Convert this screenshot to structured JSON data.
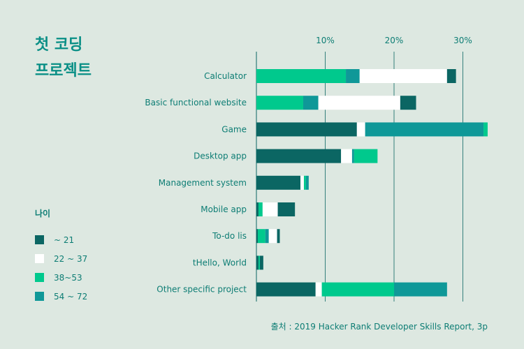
{
  "title": {
    "line1": "첫 코딩",
    "line2": "프로젝트"
  },
  "legend_title": "나이",
  "source": "출처 : 2019 Hacker Rank Developer Skills Report, 3p",
  "colors": {
    "background": "#dde8e1",
    "accent": "#0a8f86",
    "text": "#0d7d74"
  },
  "chart_data": {
    "type": "bar",
    "orientation": "horizontal",
    "stacked": true,
    "xlim": [
      0,
      35
    ],
    "xticks": [
      {
        "value": 10,
        "label": "10%"
      },
      {
        "value": 20,
        "label": "20%"
      },
      {
        "value": 30,
        "label": "30%"
      }
    ],
    "grid": true,
    "legend_position": "left",
    "categories": [
      "Calculator",
      "Basic functional website",
      "Game",
      "Desktop app",
      "Management system",
      "Mobile app",
      "To-do lis",
      "tHello, World",
      "Other specific project"
    ],
    "series": [
      {
        "name": "~ 21",
        "color": "#0b6663",
        "values": [
          0,
          0,
          14.6,
          12.3,
          6.4,
          0.3,
          0.2,
          0.3,
          8.6
        ]
      },
      {
        "name": "22 ~ 37",
        "color": "#ffffff",
        "values": [
          0,
          0,
          1.2,
          1.6,
          0.5,
          0,
          0,
          0,
          0.9
        ]
      },
      {
        "name": "38~53",
        "color": "#00c98d",
        "values": [
          13.0,
          6.8,
          0,
          0,
          0.3,
          0.6,
          1.1,
          0.2,
          10.5
        ]
      },
      {
        "name": "54 ~ 72",
        "color": "#0f9898",
        "values": [
          2.0,
          2.2,
          17.2,
          0.3,
          0.4,
          0,
          0.5,
          0,
          7.7
        ]
      },
      {
        "name": "22 ~ 37",
        "color": "#ffffff",
        "values": [
          12.7,
          11.9,
          0,
          0,
          0,
          2.2,
          1.2,
          0,
          0
        ]
      },
      {
        "name": "~ 21",
        "color": "#0b6663",
        "values": [
          1.3,
          2.3,
          0,
          0,
          0,
          2.5,
          0.4,
          0.5,
          0
        ]
      },
      {
        "name": "38~53",
        "color": "#00c98d",
        "values": [
          0,
          0,
          0.6,
          3.4,
          0,
          0,
          0,
          0,
          0
        ]
      }
    ],
    "legend": [
      {
        "label": "~ 21",
        "color": "#0b6663"
      },
      {
        "label": "22 ~ 37",
        "color": "#ffffff"
      },
      {
        "label": "38~53",
        "color": "#00c98d"
      },
      {
        "label": "54 ~ 72",
        "color": "#0f9898"
      }
    ]
  }
}
